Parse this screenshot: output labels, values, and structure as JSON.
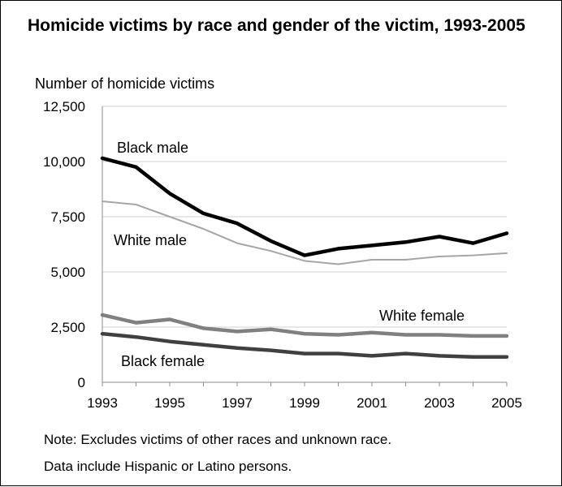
{
  "chart_data": {
    "type": "line",
    "title": "Homicide victims by race and gender of the victim, 1993-2005",
    "ylabel": "Number of homicide victims",
    "xlabel": "",
    "x": [
      1993,
      1994,
      1995,
      1996,
      1997,
      1998,
      1999,
      2000,
      2001,
      2002,
      2003,
      2004,
      2005
    ],
    "x_tick_labels": [
      "1993",
      "1995",
      "1997",
      "1999",
      "2001",
      "2003",
      "2005"
    ],
    "x_ticks": [
      1993,
      1995,
      1997,
      1999,
      2001,
      2003,
      2005
    ],
    "y_tick_labels": [
      "0",
      "2,500",
      "5,000",
      "7,500",
      "10,000",
      "12,500"
    ],
    "y_ticks": [
      0,
      2500,
      5000,
      7500,
      10000,
      12500
    ],
    "ylim": [
      0,
      12500
    ],
    "xlim": [
      1993,
      2005
    ],
    "grid": "horizontal",
    "legend": "inline labels",
    "series": [
      {
        "name": "Black male",
        "color": "#000000",
        "values": [
          10150,
          9750,
          8550,
          7650,
          7200,
          6400,
          5750,
          6050,
          6200,
          6350,
          6600,
          6300,
          6750
        ]
      },
      {
        "name": "White male",
        "color": "#a6a6a6",
        "values": [
          8200,
          8050,
          7500,
          6950,
          6300,
          5950,
          5500,
          5350,
          5550,
          5550,
          5700,
          5750,
          5850
        ]
      },
      {
        "name": "White female",
        "color": "#808080",
        "values": [
          3050,
          2700,
          2850,
          2450,
          2300,
          2400,
          2200,
          2150,
          2250,
          2150,
          2150,
          2100,
          2100
        ]
      },
      {
        "name": "Black female",
        "color": "#404040",
        "values": [
          2200,
          2050,
          1850,
          1700,
          1550,
          1450,
          1300,
          1300,
          1200,
          1300,
          1200,
          1150,
          1150
        ]
      }
    ]
  },
  "notes": {
    "line1": "Note: Excludes victims of other races and unknown race.",
    "line2": "Data include Hispanic or Latino persons."
  }
}
